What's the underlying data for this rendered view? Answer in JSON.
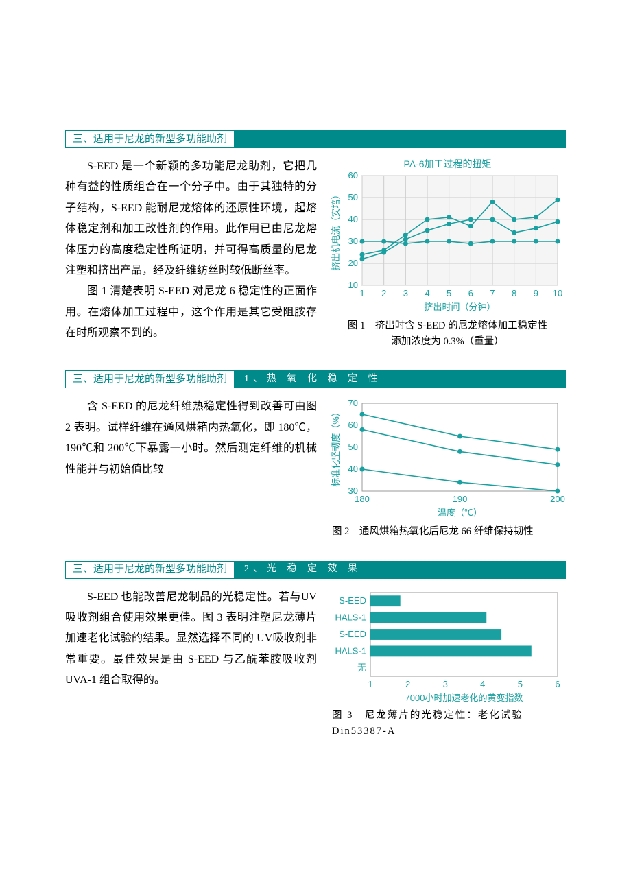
{
  "sections": [
    {
      "header": {
        "main": "三、适用于尼龙的新型多功能助剂",
        "sub": null
      },
      "paragraphs": [
        "S-EED 是一个新颖的多功能尼龙助剂，它把几种有益的性质组合在一个分子中。由于其独特的分子结构，S-EED 能耐尼龙熔体的还原性环境，起熔体稳定剂和加工改性剂的作用。此作用已由尼龙熔体压力的高度稳定性所证明，并可得高质量的尼龙注塑和挤出产品，经及纤维纺丝时较低断丝率。",
        "图 1 清楚表明 S-EED 对尼龙 6 稳定性的正面作用。在熔体加工过程中，这个作用是其它受阻胺存在时所观察不到的。"
      ],
      "chart": {
        "type": "line",
        "title": "PA-6加工过程的扭矩",
        "xlabel": "挤出时间（分钟）",
        "ylabel": "挤出机电流（安培）",
        "xticks": [
          1,
          2,
          3,
          4,
          5,
          6,
          7,
          8,
          9,
          10
        ],
        "yticks": [
          10,
          20,
          30,
          40,
          50,
          60
        ],
        "ylim": [
          10,
          60
        ],
        "grid": true,
        "background": "#f5f5f5",
        "series": [
          {
            "color": "#1aa0a0",
            "x": [
              1,
              2,
              3,
              4,
              5,
              6,
              7,
              8,
              9,
              10
            ],
            "y": [
              30,
              30,
              29,
              30,
              30,
              29,
              30,
              30,
              30,
              30
            ]
          },
          {
            "color": "#1aa0a0",
            "x": [
              1,
              2,
              3,
              4,
              5,
              6,
              7,
              8,
              9,
              10
            ],
            "y": [
              24,
              26,
              33,
              40,
              41,
              37,
              48,
              40,
              41,
              49
            ]
          },
          {
            "color": "#1aa0a0",
            "x": [
              1,
              2,
              3,
              4,
              5,
              6,
              7,
              8,
              9,
              10
            ],
            "y": [
              22,
              25,
              31,
              35,
              38,
              40,
              40,
              34,
              36,
              39
            ]
          }
        ],
        "caption_lines": [
          "图 1　挤出时含 S-EED 的尼龙熔体加工稳定性",
          "添加浓度为 0.3%（重量）"
        ]
      }
    },
    {
      "header": {
        "main": "三、适用于尼龙的新型多功能助剂",
        "sub": "1、热 氧 化 稳 定 性"
      },
      "paragraphs": [
        "含 S-EED 的尼龙纤维热稳定性得到改善可由图 2 表明。试样纤维在通风烘箱内热氧化，即 180℃，190℃和 200℃下暴露一小时。然后测定纤维的机械性能并与初始值比较"
      ],
      "chart": {
        "type": "line",
        "title": null,
        "xlabel": "温度（℃）",
        "ylabel": "标准化坚韧度（%）",
        "xticks": [
          180,
          190,
          200
        ],
        "yticks": [
          30,
          40,
          50,
          60,
          70
        ],
        "ylim": [
          30,
          70
        ],
        "grid": false,
        "background": "#ffffff",
        "series": [
          {
            "color": "#1aa0a0",
            "x": [
              180,
              190,
              200
            ],
            "y": [
              65,
              55,
              49
            ]
          },
          {
            "color": "#1aa0a0",
            "x": [
              180,
              190,
              200
            ],
            "y": [
              58,
              48,
              42
            ]
          },
          {
            "color": "#1aa0a0",
            "x": [
              180,
              190,
              200
            ],
            "y": [
              40,
              34,
              30
            ]
          }
        ],
        "caption_lines": [
          "图 2　通风烘箱热氧化后尼龙 66 纤维保持韧性"
        ]
      }
    },
    {
      "header": {
        "main": "三、适用于尼龙的新型多功能助剂",
        "sub": "2、光 稳 定 效 果"
      },
      "paragraphs": [
        "S-EED 也能改善尼龙制品的光稳定性。若与UV 吸收剂组合使用效果更佳。图 3 表明注塑尼龙薄片加速老化试验的结果。显然选择不同的 UV吸收剂非常重要。最佳效果是由 S-EED 与乙酰苯胺吸收剂 UVA-1 组合取得的。"
      ],
      "chart": {
        "type": "hbar",
        "title": null,
        "xlabel": "7000小时加速老化的黄变指数",
        "categories": [
          "S-EED",
          "HALS-1",
          "S-EED",
          "HALS-1",
          "无"
        ],
        "values": [
          1.8,
          4.1,
          4.5,
          5.3,
          1.0
        ],
        "xticks": [
          1,
          2,
          3,
          4,
          5,
          6
        ],
        "xlim": [
          1,
          6
        ],
        "bar_color": "#1aa0a0",
        "background": "#ffffff",
        "caption_lines": [
          "图 3　尼龙薄片的光稳定性：老化试验Din53387-A"
        ],
        "caption_spaced": true
      }
    }
  ]
}
